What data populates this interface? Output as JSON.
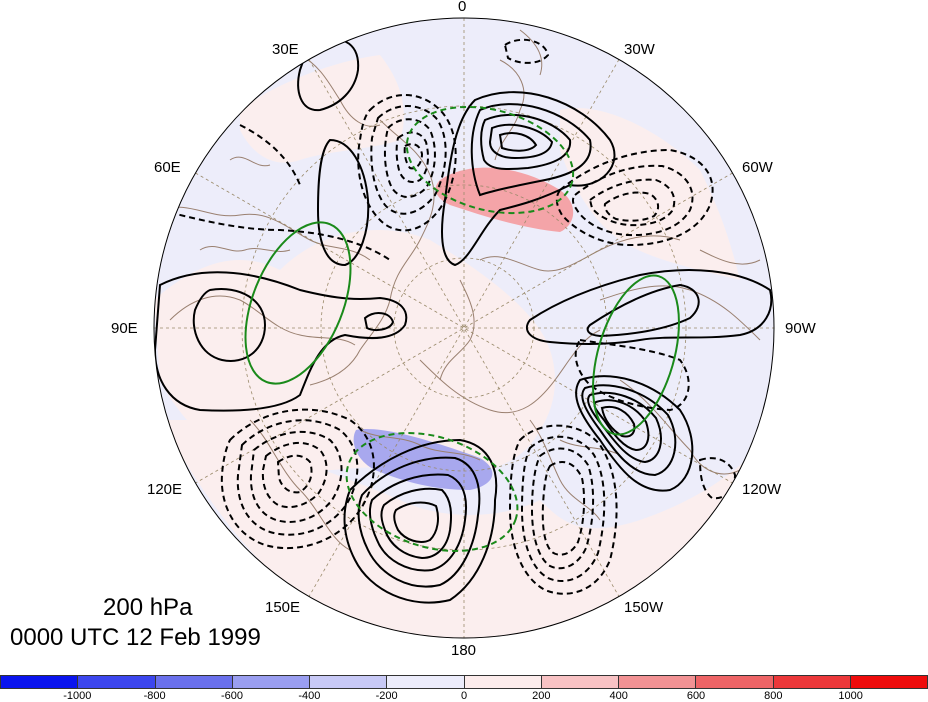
{
  "title": {
    "level": "200 hPa",
    "time": "0000 UTC 12 Feb 1999"
  },
  "longitude_labels": {
    "lon_0": "0",
    "lon_30w": "30W",
    "lon_60w": "60W",
    "lon_90w": "90W",
    "lon_120w": "120W",
    "lon_150w": "150W",
    "lon_180": "180",
    "lon_150e": "150E",
    "lon_120e": "120E",
    "lon_90e": "90E",
    "lon_60e": "60E",
    "lon_30e": "30E"
  },
  "colorbar": {
    "colors": [
      "#0a14ee",
      "#3c46ee",
      "#6a70ec",
      "#9a9ef0",
      "#c8c9f6",
      "#ececfb",
      "#fcecec",
      "#f8c2c4",
      "#f29294",
      "#ee6466",
      "#ec383a",
      "#ee0c0c"
    ],
    "labels": [
      "-1000",
      "-800",
      "-600",
      "-400",
      "-200",
      "0",
      "200",
      "400",
      "600",
      "800",
      "1000"
    ]
  },
  "map_colors": {
    "background_light_blue": "#ededfa",
    "background_light_pink": "#fbeeee",
    "positive_shade": "#f4a4a8",
    "negative_shade": "#a8a8ee",
    "contour": "#000000",
    "green_contour": "#1a8a1a",
    "coastline": "#9a8070",
    "grid": "#9a8a6a"
  }
}
